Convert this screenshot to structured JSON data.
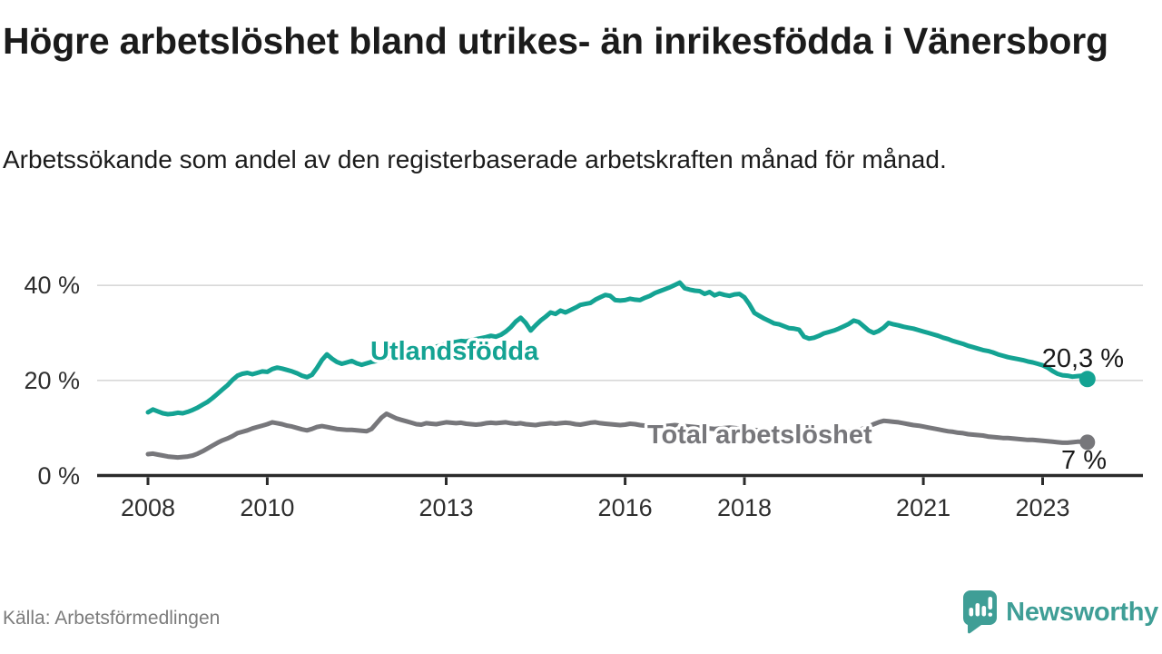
{
  "header": {
    "title": "Högre arbetslöshet bland utrikes- än inrikesfödda i Vänersborg",
    "subtitle": "Arbetssökande som andel av den registerbaserade arbetskraften månad för månad."
  },
  "footer": {
    "source": "Källa: Arbetsförmedlingen",
    "brand_name": "Newsworthy",
    "brand_color": "#3f9e96"
  },
  "chart_data": {
    "type": "line",
    "title": "Högre arbetslöshet bland utrikes- än inrikesfödda i Vänersborg",
    "subtitle": "Arbetssökande som andel av den registerbaserade arbetskraften månad för månad.",
    "x_unit": "month",
    "x_start": "2008-01",
    "x_end": "2023-10",
    "x_tick_years": [
      2008,
      2010,
      2013,
      2016,
      2018,
      2021,
      2023
    ],
    "x_tick_labels": [
      "2008",
      "2010",
      "2013",
      "2016",
      "2018",
      "2021",
      "2023"
    ],
    "y_ticks": [
      0,
      20,
      40
    ],
    "y_tick_labels": [
      "0 %",
      "20 %",
      "40 %"
    ],
    "ylim": [
      0,
      43
    ],
    "grid": "horizontal",
    "legend_position": "inline-labels",
    "axis_color": "#2b2b2b",
    "grid_color": "#d8d8d8",
    "series": [
      {
        "name": "Utlandsfödda",
        "color": "#14a393",
        "end_label": "20,3 %",
        "end_value": 20.3,
        "values": [
          13.3,
          13.9,
          13.5,
          13.1,
          12.9,
          13.0,
          13.2,
          13.1,
          13.4,
          13.8,
          14.3,
          14.9,
          15.5,
          16.3,
          17.2,
          18.1,
          19.0,
          20.1,
          21.0,
          21.4,
          21.6,
          21.3,
          21.6,
          21.9,
          21.8,
          22.4,
          22.7,
          22.5,
          22.2,
          21.9,
          21.5,
          21.0,
          20.7,
          21.2,
          22.6,
          24.3,
          25.5,
          24.6,
          23.9,
          23.5,
          23.8,
          24.1,
          23.6,
          23.3,
          23.6,
          23.9,
          24.1,
          24.4,
          24.7,
          25.0,
          25.2,
          25.4,
          25.7,
          25.9,
          26.1,
          26.3,
          26.6,
          26.9,
          27.1,
          27.4,
          27.7,
          27.9,
          28.1,
          28.3,
          28.2,
          28.5,
          28.7,
          28.9,
          29.1,
          29.4,
          29.2,
          29.6,
          30.3,
          31.2,
          32.4,
          33.2,
          32.1,
          30.5,
          31.6,
          32.6,
          33.4,
          34.3,
          34.0,
          34.7,
          34.3,
          34.8,
          35.3,
          35.9,
          36.1,
          36.3,
          37.0,
          37.5,
          38.0,
          37.8,
          36.9,
          36.8,
          36.9,
          37.2,
          37.0,
          36.9,
          37.4,
          37.8,
          38.4,
          38.8,
          39.2,
          39.6,
          40.1,
          40.6,
          39.4,
          39.1,
          38.9,
          38.8,
          38.2,
          38.6,
          37.9,
          38.3,
          38.0,
          37.8,
          38.1,
          38.2,
          37.5,
          36.0,
          34.2,
          33.6,
          33.0,
          32.5,
          32.0,
          31.8,
          31.4,
          31.0,
          30.9,
          30.7,
          29.2,
          28.8,
          29.0,
          29.4,
          29.9,
          30.2,
          30.5,
          30.9,
          31.4,
          31.9,
          32.6,
          32.3,
          31.4,
          30.5,
          30.0,
          30.4,
          31.1,
          32.1,
          31.8,
          31.6,
          31.3,
          31.1,
          30.9,
          30.6,
          30.3,
          30.0,
          29.7,
          29.4,
          29.0,
          28.7,
          28.3,
          28.0,
          27.7,
          27.3,
          27.0,
          26.7,
          26.4,
          26.2,
          25.9,
          25.5,
          25.2,
          24.9,
          24.7,
          24.5,
          24.3,
          24.0,
          23.8,
          23.5,
          23.2,
          22.7,
          22.0,
          21.4,
          21.1,
          21.0,
          20.8,
          20.9,
          21.0,
          20.3
        ]
      },
      {
        "name": "Total arbetslöshet",
        "color": "#77777b",
        "end_label": "7 %",
        "end_value": 7.0,
        "values": [
          4.5,
          4.6,
          4.4,
          4.2,
          4.0,
          3.9,
          3.8,
          3.9,
          4.0,
          4.2,
          4.6,
          5.1,
          5.7,
          6.3,
          6.9,
          7.4,
          7.8,
          8.3,
          8.9,
          9.2,
          9.5,
          9.9,
          10.2,
          10.5,
          10.8,
          11.2,
          11.0,
          10.8,
          10.5,
          10.3,
          10.0,
          9.7,
          9.5,
          9.8,
          10.2,
          10.4,
          10.2,
          10.0,
          9.8,
          9.7,
          9.6,
          9.6,
          9.5,
          9.4,
          9.3,
          9.8,
          11.0,
          12.2,
          13.0,
          12.5,
          12.0,
          11.7,
          11.4,
          11.1,
          10.8,
          10.7,
          11.0,
          10.9,
          10.8,
          11.0,
          11.2,
          11.1,
          11.0,
          11.1,
          10.9,
          10.8,
          10.7,
          10.8,
          11.0,
          11.1,
          11.0,
          11.1,
          11.2,
          11.0,
          10.9,
          11.0,
          10.8,
          10.7,
          10.6,
          10.8,
          10.9,
          11.0,
          10.9,
          11.0,
          11.1,
          11.0,
          10.8,
          10.7,
          10.9,
          11.1,
          11.2,
          11.0,
          10.9,
          10.8,
          10.7,
          10.6,
          10.7,
          10.9,
          10.8,
          10.6,
          10.5,
          10.7,
          10.6,
          10.5,
          10.4,
          10.5,
          10.6,
          10.5,
          10.4,
          10.3,
          10.2,
          10.1,
          10.0,
          9.9,
          9.8,
          9.9,
          10.0,
          10.1,
          10.0,
          9.9,
          9.8,
          9.7,
          9.6,
          9.5,
          9.4,
          9.3,
          9.2,
          9.3,
          9.4,
          9.5,
          9.4,
          9.3,
          9.2,
          9.1,
          9.0,
          9.0,
          8.9,
          8.9,
          9.0,
          9.1,
          9.2,
          9.3,
          9.4,
          9.6,
          9.9,
          10.3,
          10.8,
          11.2,
          11.5,
          11.4,
          11.3,
          11.2,
          11.0,
          10.8,
          10.6,
          10.5,
          10.3,
          10.1,
          9.9,
          9.7,
          9.5,
          9.3,
          9.2,
          9.0,
          8.9,
          8.7,
          8.6,
          8.5,
          8.4,
          8.2,
          8.1,
          8.0,
          7.9,
          7.9,
          7.8,
          7.7,
          7.6,
          7.5,
          7.5,
          7.4,
          7.3,
          7.2,
          7.1,
          7.0,
          6.9,
          6.9,
          7.0,
          7.1,
          7.1,
          7.0
        ]
      }
    ]
  }
}
